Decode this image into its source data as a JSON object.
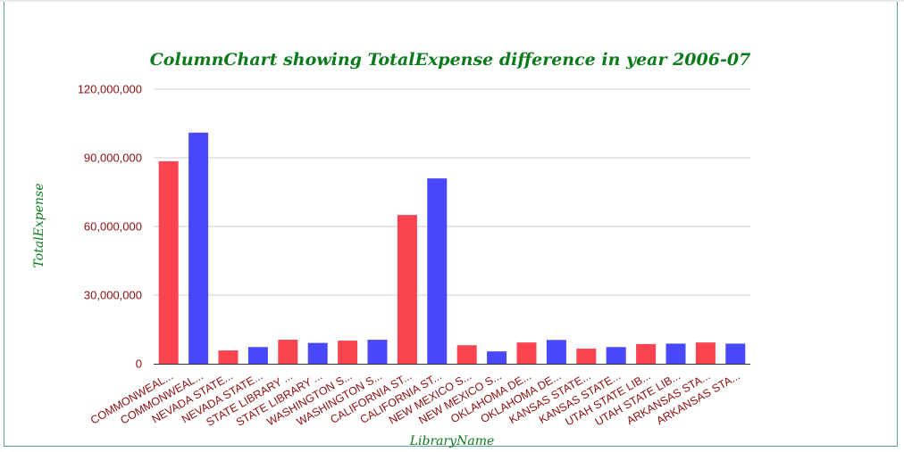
{
  "chart_data": {
    "type": "bar",
    "title": "ColumnChart showing TotalExpense difference in year 2006-07",
    "xlabel": "LibraryName",
    "ylabel": "TotalExpense",
    "ylim": [
      0,
      120000000
    ],
    "yticks": [
      0,
      30000000,
      60000000,
      90000000,
      120000000
    ],
    "ytick_labels": [
      "0",
      "30,000,000",
      "60,000,000",
      "90,000,000",
      "120,000,000"
    ],
    "grid": true,
    "categories": [
      "COMMONWEAL...",
      "COMMONWEAL...",
      "NEVADA STATE...",
      "NEVADA STATE...",
      "STATE LIBRARY ...",
      "STATE LIBRARY ...",
      "WASHINGTON S...",
      "WASHINGTON S...",
      "CALIFORNIA ST...",
      "CALIFORNIA ST...",
      "NEW MEXICO S...",
      "NEW MEXICO S...",
      "OKLAHOMA DE...",
      "OKLAHOMA DE...",
      "KANSAS STATE...",
      "KANSAS STATE...",
      "UTAH STATE LIB...",
      "UTAH STATE LIB...",
      "ARKANSAS STA...",
      "ARKANSAS STA..."
    ],
    "values": [
      88500000,
      101000000,
      5800000,
      7300000,
      10500000,
      9100000,
      10100000,
      10500000,
      65000000,
      81000000,
      8100000,
      5400000,
      9300000,
      10400000,
      6600000,
      7300000,
      8600000,
      8800000,
      9300000,
      8800000
    ],
    "colors": [
      "#fb4450",
      "#4a48fb"
    ]
  }
}
